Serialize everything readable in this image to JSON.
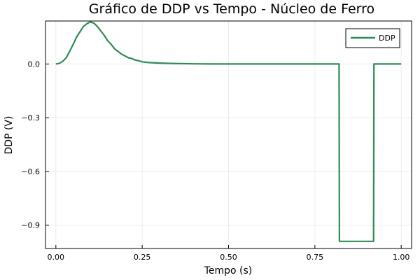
{
  "chart_data": {
    "type": "line",
    "title": "Gráfico de DDP vs Tempo - Núcleo de Ferro",
    "xlabel": "Tempo (s)",
    "ylabel": "DDP (V)",
    "xlim": [
      -0.03,
      1.03
    ],
    "ylim": [
      -1.03,
      0.24
    ],
    "xticks": [
      0.0,
      0.25,
      0.5,
      0.75,
      1.0
    ],
    "xtick_labels": [
      "0.00",
      "0.25",
      "0.50",
      "0.75",
      "1.00"
    ],
    "yticks": [
      0.0,
      -0.3,
      -0.6,
      -0.9
    ],
    "ytick_labels": [
      "0.0",
      "−0.3",
      "−0.6",
      "−0.9"
    ],
    "grid": true,
    "legend": {
      "position": "top-right",
      "entries": [
        "DDP"
      ]
    },
    "series": [
      {
        "name": "DDP",
        "color": "#2e8b57",
        "x": [
          0.0,
          0.01,
          0.02,
          0.03,
          0.04,
          0.05,
          0.06,
          0.07,
          0.08,
          0.09,
          0.1,
          0.11,
          0.12,
          0.13,
          0.14,
          0.15,
          0.16,
          0.17,
          0.18,
          0.19,
          0.2,
          0.21,
          0.22,
          0.23,
          0.24,
          0.25,
          0.27,
          0.3,
          0.33,
          0.36,
          0.4,
          0.45,
          0.5,
          0.55,
          0.6,
          0.65,
          0.7,
          0.75,
          0.8,
          0.82,
          0.821,
          0.92,
          0.921,
          0.93,
          0.95,
          0.97,
          1.0
        ],
        "y": [
          0.0,
          0.003,
          0.015,
          0.035,
          0.07,
          0.11,
          0.15,
          0.18,
          0.21,
          0.225,
          0.235,
          0.228,
          0.21,
          0.185,
          0.16,
          0.13,
          0.11,
          0.085,
          0.07,
          0.055,
          0.045,
          0.035,
          0.03,
          0.022,
          0.018,
          0.012,
          0.008,
          0.005,
          0.003,
          0.002,
          0.001,
          0.0,
          0.0,
          0.0,
          0.0,
          0.0,
          0.0,
          0.0,
          0.0,
          0.0,
          -0.99,
          -0.99,
          0.0,
          0.0,
          0.0,
          0.0,
          0.0
        ]
      }
    ]
  }
}
